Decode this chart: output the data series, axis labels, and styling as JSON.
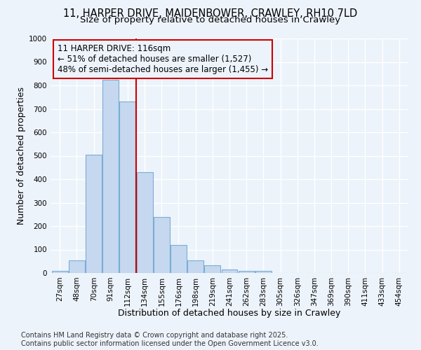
{
  "title_line1": "11, HARPER DRIVE, MAIDENBOWER, CRAWLEY, RH10 7LD",
  "title_line2": "Size of property relative to detached houses in Crawley",
  "xlabel": "Distribution of detached houses by size in Crawley",
  "ylabel": "Number of detached properties",
  "categories": [
    "27sqm",
    "48sqm",
    "70sqm",
    "91sqm",
    "112sqm",
    "134sqm",
    "155sqm",
    "176sqm",
    "198sqm",
    "219sqm",
    "241sqm",
    "262sqm",
    "283sqm",
    "305sqm",
    "326sqm",
    "347sqm",
    "369sqm",
    "390sqm",
    "411sqm",
    "433sqm",
    "454sqm"
  ],
  "values": [
    8,
    55,
    505,
    825,
    730,
    430,
    240,
    120,
    55,
    33,
    15,
    10,
    10,
    0,
    0,
    0,
    0,
    0,
    0,
    0,
    0
  ],
  "bar_color": "#c5d8f0",
  "bar_edge_color": "#7aadd4",
  "vline_x_index": 4.5,
  "vline_color": "#cc0000",
  "annotation_line1": "11 HARPER DRIVE: 116sqm",
  "annotation_line2": "← 51% of detached houses are smaller (1,527)",
  "annotation_line3": "48% of semi-detached houses are larger (1,455) →",
  "annotation_box_color": "#cc0000",
  "ylim": [
    0,
    1000
  ],
  "yticks": [
    0,
    100,
    200,
    300,
    400,
    500,
    600,
    700,
    800,
    900,
    1000
  ],
  "background_color": "#edf3fb",
  "grid_color": "#c8d8f0",
  "footer_text": "Contains HM Land Registry data © Crown copyright and database right 2025.\nContains public sector information licensed under the Open Government Licence v3.0.",
  "title_fontsize": 10.5,
  "subtitle_fontsize": 9.5,
  "axis_label_fontsize": 9,
  "tick_fontsize": 7.5,
  "annotation_fontsize": 8.5,
  "footer_fontsize": 7
}
